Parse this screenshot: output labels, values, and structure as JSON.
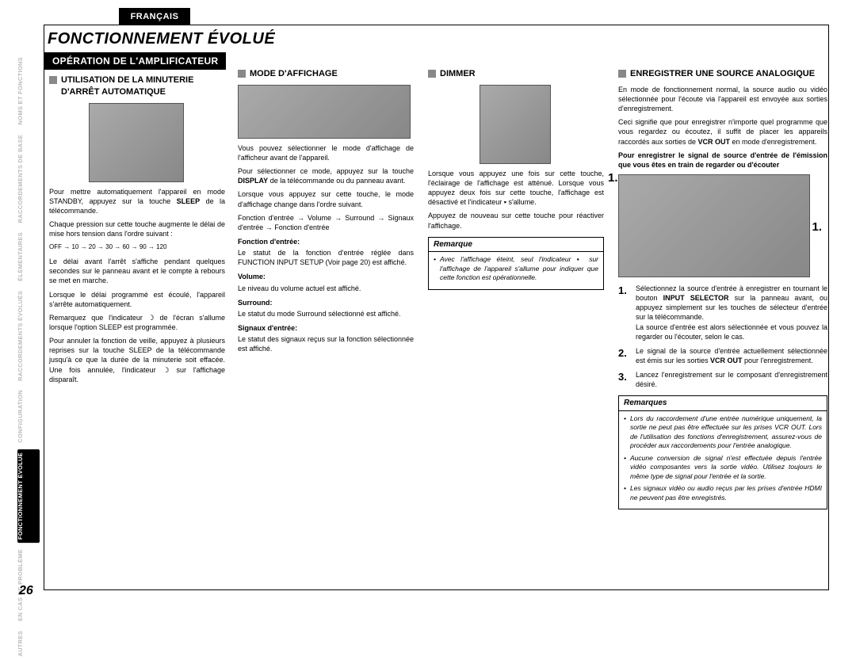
{
  "language_tab": "FRANÇAIS",
  "page_title": "FONCTIONNEMENT ÉVOLUÉ",
  "section_title": "OPÉRATION DE L'AMPLIFICATEUR",
  "page_number": "26",
  "sidebar": [
    "NOMS ET FONCTIONS",
    "RACCORDEMENTS DE BASE",
    "ÉLÉMENTAIRES",
    "RACCORDEMENTS ÉVOLUÉS",
    "CONFIGURATION",
    "FONCTIONNEMENT ÉVOLUÉ",
    "EN CAS DE PROBLÈME",
    "AUTRES"
  ],
  "col1": {
    "heading": "UTILISATION DE LA MINUTERIE D'ARRÊT AUTOMATIQUE",
    "p1": "Pour mettre automatiquement l'appareil en mode STANDBY, appuyez sur la touche ",
    "p1b": "SLEEP",
    "p1c": " de la télécommande.",
    "p2": "Chaque pression sur cette touche augmente le délai de mise hors tension dans l'ordre suivant :",
    "seq": "OFF → 10 → 20 → 30 → 60 → 90 → 120",
    "p3": "Le délai avant l'arrêt s'affiche pendant quelques secondes sur le panneau avant et le compte à rebours se met en marche.",
    "p4": "Lorsque le délai programmé est écoulé, l'appareil s'arrête automatiquement.",
    "p5": "Remarquez que l'indicateur ☽ de l'écran s'allume lorsque l'option SLEEP est programmée.",
    "p6": "Pour annuler la fonction de veille, appuyez à plusieurs reprises sur la touche SLEEP de la télécommande jusqu'à ce que la durée de la minuterie soit effacée. Une fois annulée, l'indicateur ☽ sur l'affichage disparaît."
  },
  "col2": {
    "heading": "MODE D'AFFICHAGE",
    "p1": "Vous pouvez sélectionner le mode d'affichage de l'afficheur avant de l'appareil.",
    "p2a": "Pour sélectionner ce mode, appuyez sur la touche ",
    "p2b": "DISPLAY",
    "p2c": " de la télécommande ou du panneau avant.",
    "p3": "Lorsque vous appuyez sur cette touche, le mode d'affichage change dans l'ordre suivant.",
    "p4": "Fonction d'entrée → Volume → Surround → Signaux d'entrée → Fonction d'entrée",
    "l1": "Fonction d'entrée:",
    "t1": "Le statut de la fonction d'entrée réglée dans FUNCTION INPUT SETUP (Voir page 20) est affiché.",
    "l2": "Volume:",
    "t2": "Le niveau du volume actuel est affiché.",
    "l3": "Surround:",
    "t3": "Le statut du mode Surround sélectionné est affiché.",
    "l4": "Signaux d'entrée:",
    "t4": "Le statut des signaux reçus sur la fonction sélectionnée est affiché."
  },
  "col3": {
    "heading": "DIMMER",
    "p1": "Lorsque vous appuyez une fois sur cette touche, l'éclairage de l'affichage est atténué. Lorsque vous appuyez deux fois sur cette touche, l'affichage est désactivé et l'indicateur ▪ s'allume.",
    "p2": "Appuyez de nouveau sur cette touche pour réactiver l'affichage.",
    "remark_title": "Remarque",
    "remark_body": "Avec l'affichage éteint, seul l'indicateur ▪ sur l'affichage de l'appareil s'allume pour indiquer que cette fonction est opérationnelle."
  },
  "col4": {
    "heading": "ENREGISTRER UNE SOURCE ANALOGIQUE",
    "p1": "En mode de fonctionnement normal, la source audio ou vidéo sélectionnée pour l'écoute via l'appareil est envoyée aux sorties d'enregistrement.",
    "p2a": "Ceci signifie que pour enregistrer n'importe quel programme que vous regardez ou écoutez, il suffit de placer les appareils raccordés aux sorties de ",
    "p2b": "VCR OUT",
    "p2c": " en mode d'enregistrement.",
    "bold": "Pour enregistrer le signal de source d'entrée de l'émission que vous êtes en train de regarder ou d'écouter",
    "callout1": "1.",
    "callout2": "1.",
    "step1n": "1.",
    "step1a": "Sélectionnez la source d'entrée à enregistrer en tournant le bouton ",
    "step1b": "INPUT SELECTOR",
    "step1c": " sur la panneau avant, ou appuyez simplement sur les touches de sélecteur d'entrée sur la télécommande.",
    "step1d": "La source d'entrée est alors sélectionnée et vous pouvez la regarder ou l'écouter, selon le cas.",
    "step2n": "2.",
    "step2a": "Le signal de la source d'entrée actuellement sélectionnée est émis sur les sorties ",
    "step2b": "VCR OUT",
    "step2c": " pour l'enregistrement.",
    "step3n": "3.",
    "step3": "Lancez l'enregistrement sur le composant d'enregistrement désiré.",
    "remarks_title": "Remarques",
    "r1": "Lors du raccordement d'une entrée numérique uniquement, la sortie ne peut pas être effectuée sur les prises VCR OUT. Lors de l'utilisation des fonctions d'enregistrement, assurez-vous de procéder aux raccordements pour l'entrée analogique.",
    "r2": "Aucune conversion de signal n'est effectuée depuis l'entrée vidéo composantes vers la sortie vidéo. Utilisez toujours le même type de signal pour l'entrée et la sortie.",
    "r3": "Les signaux vidéo ou audio reçus par les prises d'entrée HDMI ne peuvent pas être enregistrés."
  }
}
